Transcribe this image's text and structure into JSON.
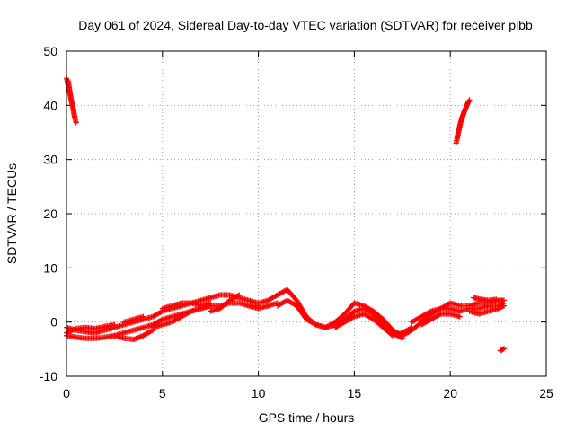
{
  "chart_data": {
    "type": "scatter",
    "title": "Day 061 of 2024, Sidereal Day-to-day VTEC variation (SDTVAR) for receiver plbb",
    "xlabel": "GPS time / hours",
    "ylabel": "SDTVAR / TECUs",
    "xlim": [
      0,
      25
    ],
    "ylim": [
      -10,
      50
    ],
    "xticks": [
      0,
      5,
      10,
      15,
      20,
      25
    ],
    "yticks": [
      -10,
      0,
      10,
      20,
      30,
      40,
      50
    ],
    "grid": true,
    "marker": "plus",
    "series": [
      {
        "name": "plbb",
        "color": "#ff0000",
        "segments": [
          {
            "x": [
              0.0,
              0.1,
              0.2,
              0.3,
              0.4,
              0.5
            ],
            "y": [
              45.0,
              43.5,
              41.8,
              40.0,
              38.2,
              36.8
            ]
          },
          {
            "x": [
              0.1,
              0.15,
              0.25,
              0.35,
              0.45
            ],
            "y": [
              44.5,
              43.0,
              41.0,
              39.5,
              37.5
            ]
          },
          {
            "x": [
              20.3,
              20.4,
              20.5,
              20.6,
              20.7,
              20.8,
              20.9,
              21.0
            ],
            "y": [
              33.0,
              34.8,
              36.3,
              37.6,
              38.6,
              39.5,
              40.3,
              41.0
            ]
          },
          {
            "x": [
              20.35,
              20.55,
              20.75,
              20.95
            ],
            "y": [
              33.8,
              37.0,
              39.0,
              40.7
            ]
          },
          {
            "x": [
              0.0,
              0.5,
              1.0,
              1.5,
              2.0,
              2.5,
              3.0,
              3.5,
              4.0,
              4.5,
              5.0,
              5.5,
              6.0,
              6.5,
              7.0,
              7.5,
              8.0,
              8.5,
              9.0,
              9.5,
              10.0,
              10.5,
              11.0,
              11.5,
              12.0,
              12.5,
              13.0,
              13.5,
              14.0,
              14.5,
              15.0,
              15.5,
              16.0,
              16.5,
              17.0,
              17.5,
              18.0,
              18.5,
              19.0,
              19.5,
              20.0,
              20.5,
              21.0,
              21.5,
              22.0,
              22.5,
              22.8
            ],
            "y": [
              -1.0,
              -1.5,
              -1.8,
              -2.0,
              -1.5,
              -1.0,
              -0.5,
              0.0,
              0.5,
              1.0,
              2.0,
              2.5,
              3.0,
              3.5,
              4.0,
              4.5,
              5.0,
              5.0,
              4.5,
              4.0,
              3.5,
              4.0,
              5.0,
              6.0,
              4.0,
              1.0,
              -0.5,
              -1.0,
              0.0,
              1.5,
              3.5,
              3.0,
              2.0,
              0.5,
              -1.5,
              -2.5,
              -1.5,
              0.0,
              1.5,
              2.5,
              3.5,
              3.0,
              3.0,
              3.5,
              3.5,
              4.0,
              4.0
            ]
          },
          {
            "x": [
              0.0,
              0.5,
              1.0,
              1.5,
              2.0,
              2.5,
              3.0,
              3.5,
              4.0,
              4.5,
              5.0,
              5.5,
              6.0,
              6.5,
              7.0,
              7.5,
              8.0,
              8.5,
              9.0,
              9.5,
              10.0
            ],
            "y": [
              -2.5,
              -2.8,
              -3.0,
              -3.0,
              -2.8,
              -2.5,
              -2.0,
              -1.5,
              -1.0,
              -0.5,
              0.5,
              1.0,
              1.5,
              2.0,
              2.5,
              3.0,
              3.0,
              3.5,
              3.5,
              3.0,
              3.0
            ]
          },
          {
            "x": [
              0.0,
              0.5,
              1.0,
              1.5,
              2.0,
              2.5
            ],
            "y": [
              -2.0,
              -1.2,
              -1.0,
              -1.2,
              -0.8,
              -0.5
            ]
          },
          {
            "x": [
              2.5,
              3.0,
              3.5,
              4.0,
              4.5
            ],
            "y": [
              -2.5,
              -3.0,
              -3.2,
              -2.5,
              -1.5
            ]
          },
          {
            "x": [
              3.0,
              3.5,
              4.0
            ],
            "y": [
              0.0,
              0.5,
              1.0
            ]
          },
          {
            "x": [
              4.5,
              5.0,
              5.5,
              6.0,
              6.5,
              7.0,
              7.5
            ],
            "y": [
              -1.0,
              -0.5,
              0.0,
              1.0,
              2.0,
              2.5,
              3.0
            ]
          },
          {
            "x": [
              5.0,
              5.5,
              6.0,
              6.5,
              7.0,
              7.5
            ],
            "y": [
              2.5,
              3.0,
              3.5,
              3.5,
              3.0,
              3.5
            ]
          },
          {
            "x": [
              7.5,
              8.0,
              8.5,
              9.0
            ],
            "y": [
              2.0,
              2.5,
              4.0,
              5.0
            ]
          },
          {
            "x": [
              9.5,
              10.0,
              10.5,
              11.0
            ],
            "y": [
              3.0,
              2.5,
              3.0,
              3.5
            ]
          },
          {
            "x": [
              11.0,
              11.5,
              12.0,
              12.5,
              13.0,
              13.5,
              14.0,
              14.5,
              15.0,
              15.5,
              16.0,
              16.5,
              17.0,
              17.5
            ],
            "y": [
              3.0,
              4.0,
              3.0,
              0.5,
              -0.5,
              -1.0,
              -0.5,
              0.5,
              2.0,
              2.5,
              1.5,
              -0.5,
              -2.0,
              -3.0
            ]
          },
          {
            "x": [
              14.0,
              14.5,
              15.0,
              15.5,
              16.0,
              16.5,
              17.0,
              17.5,
              18.0
            ],
            "y": [
              -1.0,
              0.0,
              1.0,
              1.5,
              0.5,
              -1.0,
              -2.5,
              -2.0,
              -1.0
            ]
          },
          {
            "x": [
              18.0,
              18.5,
              19.0,
              19.5,
              20.0,
              20.5,
              21.0,
              21.5,
              22.0,
              22.5,
              22.8
            ],
            "y": [
              0.0,
              1.0,
              2.0,
              2.5,
              2.5,
              2.0,
              2.5,
              2.5,
              3.0,
              3.0,
              3.5
            ]
          },
          {
            "x": [
              18.5,
              19.0,
              19.5,
              20.0,
              20.5
            ],
            "y": [
              -0.5,
              0.5,
              1.5,
              1.5,
              1.0
            ]
          },
          {
            "x": [
              21.0,
              21.5,
              22.0,
              22.5,
              22.8
            ],
            "y": [
              2.0,
              1.5,
              2.0,
              2.5,
              3.0
            ]
          },
          {
            "x": [
              21.2,
              21.6,
              22.0,
              22.4
            ],
            "y": [
              4.5,
              4.2,
              4.0,
              4.2
            ]
          },
          {
            "x": [
              22.6,
              22.7,
              22.8
            ],
            "y": [
              -5.3,
              -5.1,
              -4.9
            ]
          }
        ]
      }
    ]
  }
}
